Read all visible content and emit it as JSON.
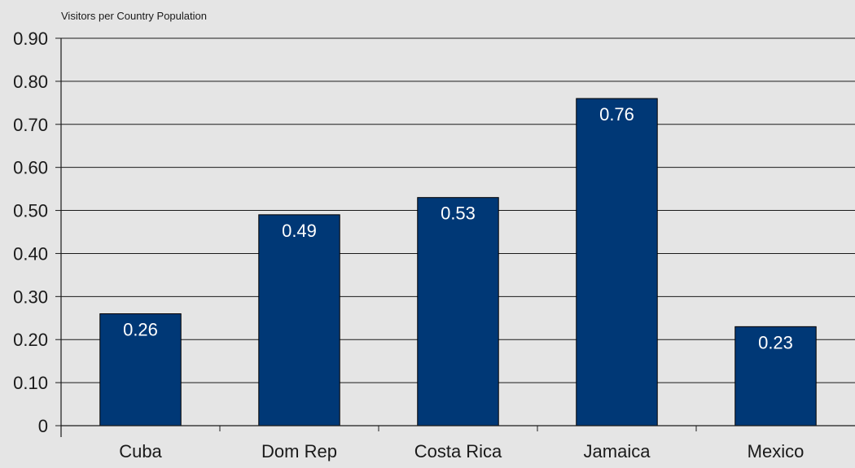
{
  "chart_data": {
    "type": "bar",
    "ylabel": "Visitors per Country Population",
    "xlabel": "",
    "categories": [
      "Cuba",
      "Dom Rep",
      "Costa Rica",
      "Jamaica",
      "Mexico"
    ],
    "values": [
      0.26,
      0.49,
      0.53,
      0.76,
      0.23
    ],
    "data_labels": [
      "0.26",
      "0.49",
      "0.53",
      "0.76",
      "0.23"
    ],
    "ylim": [
      0,
      0.9
    ],
    "y_ticks": [
      0,
      0.1,
      0.2,
      0.3,
      0.4,
      0.5,
      0.6,
      0.7,
      0.8,
      0.9
    ],
    "y_tick_labels": [
      "0",
      "0.10",
      "0.20",
      "0.30",
      "0.40",
      "0.50",
      "0.60",
      "0.70",
      "0.80",
      "0.90"
    ],
    "grid": true,
    "legend": "none",
    "colors": {
      "bar": "#003876",
      "background": "#e5e5e5",
      "axis": "#1a1a1a",
      "data_label": "#ffffff"
    }
  }
}
